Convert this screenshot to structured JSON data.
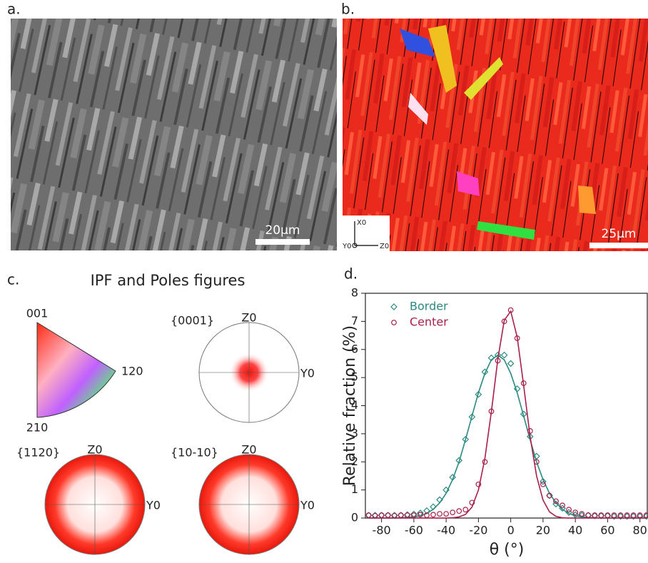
{
  "panels": {
    "a": {
      "label": "a.",
      "scale_bar": "20µm"
    },
    "b": {
      "label": "b.",
      "scale_bar": "25µm",
      "axes": [
        "X0",
        "Y0",
        "Z0"
      ]
    },
    "c": {
      "label": "c.",
      "title": "IPF and Poles figures",
      "ipf": [
        "001",
        "120",
        "210"
      ],
      "poles": [
        {
          "title": "{0001}",
          "top": "Z0",
          "right": "Y0"
        },
        {
          "title": "{1120}",
          "top": "Z0",
          "right": "Y0"
        },
        {
          "title": "{10-10}",
          "top": "Z0",
          "right": "Y0"
        }
      ]
    },
    "d": {
      "label": "d."
    }
  },
  "chart_data": {
    "type": "scatter",
    "x_label": "θ (°)",
    "y_label": "Relative fraction (%)",
    "xlim": [
      -90,
      85
    ],
    "ylim": [
      0,
      8
    ],
    "xticks": [
      -80,
      -60,
      -40,
      -20,
      0,
      20,
      40,
      60,
      80
    ],
    "yticks": [
      0,
      1,
      2,
      3,
      4,
      5,
      6,
      7,
      8
    ],
    "legend": "top-left",
    "x": [
      -88,
      -84,
      -80,
      -76,
      -72,
      -68,
      -64,
      -60,
      -56,
      -52,
      -48,
      -44,
      -40,
      -36,
      -32,
      -28,
      -24,
      -20,
      -16,
      -12,
      -8,
      -4,
      0,
      4,
      8,
      12,
      16,
      20,
      24,
      28,
      32,
      36,
      40,
      44,
      48,
      52,
      56,
      60,
      64,
      68,
      72,
      76,
      80,
      84
    ],
    "series": [
      {
        "name": "Border",
        "color": "#2a8a80",
        "marker": "diamond",
        "values": [
          0.1,
          0.1,
          0.1,
          0.1,
          0.1,
          0.1,
          0.12,
          0.14,
          0.18,
          0.26,
          0.4,
          0.65,
          1.0,
          1.45,
          2.05,
          2.8,
          3.6,
          4.4,
          5.2,
          5.7,
          5.8,
          5.8,
          5.5,
          4.6,
          3.7,
          2.9,
          2.2,
          1.3,
          0.8,
          0.5,
          0.35,
          0.2,
          0.12,
          0.1,
          0.1,
          0.08,
          0.08,
          0.08,
          0.06,
          0.06,
          0.06,
          0.06,
          0.06,
          0.06
        ],
        "fit_values": [
          0,
          0,
          0,
          0,
          0,
          0.01,
          0.02,
          0.04,
          0.08,
          0.16,
          0.31,
          0.54,
          0.88,
          1.37,
          2.0,
          2.79,
          3.63,
          4.46,
          5.15,
          5.63,
          5.8,
          5.63,
          5.15,
          4.46,
          3.63,
          2.79,
          2.0,
          1.37,
          0.88,
          0.54,
          0.31,
          0.16,
          0.08,
          0.04,
          0.02,
          0.01,
          0,
          0,
          0,
          0,
          0,
          0,
          0,
          0
        ]
      },
      {
        "name": "Center",
        "color": "#a8204a",
        "marker": "circle",
        "values": [
          0.1,
          0.08,
          0.1,
          0.1,
          0.08,
          0.1,
          0.1,
          0.1,
          0.12,
          0.1,
          0.12,
          0.15,
          0.15,
          0.2,
          0.25,
          0.3,
          0.55,
          1.2,
          2.0,
          3.8,
          5.6,
          7.0,
          7.4,
          6.4,
          4.8,
          3.1,
          2.0,
          1.2,
          0.8,
          0.6,
          0.45,
          0.3,
          0.2,
          0.15,
          0.1,
          0.1,
          0.1,
          0.1,
          0.1,
          0.1,
          0.1,
          0.1,
          0.1,
          0.1
        ],
        "fit_values": [
          0,
          0,
          0,
          0,
          0,
          0,
          0,
          0,
          0,
          0,
          0,
          0,
          0,
          0.01,
          0.04,
          0.13,
          0.39,
          1.0,
          2.12,
          3.78,
          5.65,
          7.04,
          7.36,
          6.44,
          4.72,
          2.9,
          1.5,
          0.64,
          0.22,
          0.06,
          0.01,
          0,
          0,
          0,
          0,
          0,
          0,
          0,
          0,
          0,
          0,
          0,
          0,
          0
        ]
      }
    ]
  }
}
